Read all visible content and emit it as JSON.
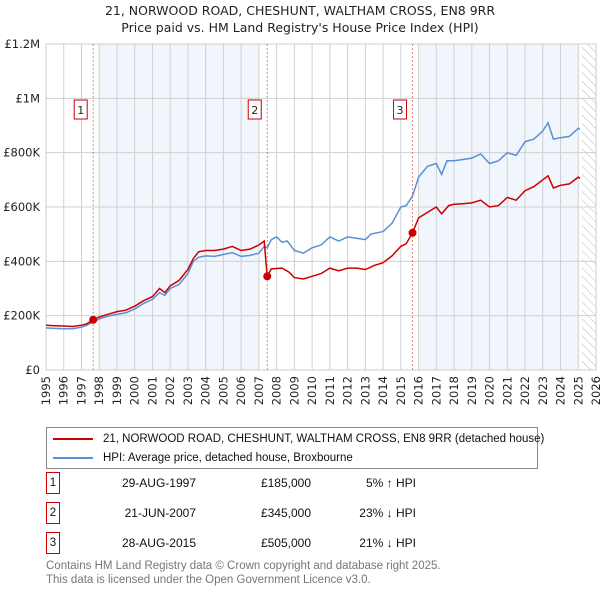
{
  "chart_data": {
    "type": "line",
    "title": "21, NORWOOD ROAD, CHESHUNT, WALTHAM CROSS, EN8 9RR",
    "subtitle": "Price paid vs. HM Land Registry's House Price Index (HPI)",
    "xlim": [
      1995,
      2026
    ],
    "ylim": [
      0,
      1200000
    ],
    "x_ticks": [
      "1995",
      "1996",
      "1997",
      "1998",
      "1999",
      "2000",
      "2001",
      "2002",
      "2003",
      "2004",
      "2005",
      "2006",
      "2007",
      "2008",
      "2009",
      "2010",
      "2011",
      "2012",
      "2013",
      "2014",
      "2015",
      "2016",
      "2017",
      "2018",
      "2019",
      "2020",
      "2021",
      "2022",
      "2023",
      "2024",
      "2025",
      "2026"
    ],
    "y_ticks": [
      {
        "v": 0,
        "label": "£0"
      },
      {
        "v": 200000,
        "label": "£200K"
      },
      {
        "v": 400000,
        "label": "£400K"
      },
      {
        "v": 600000,
        "label": "£600K"
      },
      {
        "v": 800000,
        "label": "£800K"
      },
      {
        "v": 1000000,
        "label": "£1M"
      },
      {
        "v": 1200000,
        "label": "£1.2M"
      }
    ],
    "grid": true,
    "shaded_ranges": [
      [
        1998,
        2007
      ],
      [
        2016,
        2025
      ]
    ],
    "forecast_hatch_from": 2025.2,
    "series": [
      {
        "name": "21, NORWOOD ROAD, CHESHUNT, WALTHAM CROSS, EN8 9RR (detached house)",
        "color": "#cc0000",
        "x": [
          1995,
          1995.5,
          1996,
          1996.5,
          1997,
          1997.3,
          1997.66,
          1998,
          1998.5,
          1999,
          1999.5,
          2000,
          2000.5,
          2001,
          2001.4,
          2001.7,
          2002,
          2002.5,
          2003,
          2003.3,
          2003.6,
          2004,
          2004.5,
          2005,
          2005.5,
          2006,
          2006.5,
          2007,
          2007.3,
          2007.47,
          2007.7,
          2008.3,
          2008.7,
          2009,
          2009.5,
          2010,
          2010.5,
          2011,
          2011.5,
          2012,
          2012.5,
          2013,
          2013.5,
          2014,
          2014.5,
          2015,
          2015.3,
          2015.66,
          2016,
          2016.5,
          2017,
          2017.3,
          2017.7,
          2018,
          2018.5,
          2019,
          2019.5,
          2020,
          2020.5,
          2021,
          2021.5,
          2022,
          2022.5,
          2023,
          2023.3,
          2023.6,
          2024,
          2024.5,
          2025,
          2025.1
        ],
        "y": [
          165000,
          163000,
          162000,
          160000,
          165000,
          170000,
          185000,
          195000,
          205000,
          215000,
          220000,
          235000,
          255000,
          270000,
          300000,
          285000,
          310000,
          330000,
          370000,
          410000,
          435000,
          440000,
          440000,
          445000,
          455000,
          440000,
          445000,
          460000,
          475000,
          345000,
          372000,
          375000,
          360000,
          340000,
          335000,
          345000,
          355000,
          375000,
          365000,
          375000,
          375000,
          370000,
          385000,
          395000,
          420000,
          455000,
          465000,
          505000,
          560000,
          580000,
          600000,
          575000,
          605000,
          610000,
          612000,
          615000,
          625000,
          600000,
          605000,
          635000,
          625000,
          660000,
          675000,
          700000,
          715000,
          670000,
          680000,
          685000,
          710000,
          705000
        ]
      },
      {
        "name": "HPI: Average price, detached house, Broxbourne",
        "color": "#5b8fd6",
        "x": [
          1995,
          1995.5,
          1996,
          1996.5,
          1997,
          1997.3,
          1997.66,
          1998,
          1998.5,
          1999,
          1999.5,
          2000,
          2000.5,
          2001,
          2001.4,
          2001.7,
          2002,
          2002.5,
          2003,
          2003.3,
          2003.6,
          2004,
          2004.5,
          2005,
          2005.5,
          2006,
          2006.5,
          2007,
          2007.3,
          2007.47,
          2007.7,
          2008,
          2008.3,
          2008.6,
          2009,
          2009.5,
          2010,
          2010.5,
          2011,
          2011.5,
          2012,
          2012.5,
          2013,
          2013.3,
          2014,
          2014.5,
          2015,
          2015.3,
          2015.66,
          2016,
          2016.5,
          2017,
          2017.3,
          2017.6,
          2018,
          2018.5,
          2019,
          2019.5,
          2020,
          2020.5,
          2021,
          2021.5,
          2022,
          2022.5,
          2023,
          2023.3,
          2023.6,
          2024,
          2024.5,
          2025,
          2025.1
        ],
        "y": [
          155000,
          153000,
          152000,
          152000,
          158000,
          165000,
          176000,
          188000,
          198000,
          205000,
          210000,
          225000,
          245000,
          260000,
          285000,
          275000,
          300000,
          315000,
          355000,
          400000,
          415000,
          420000,
          418000,
          425000,
          432000,
          418000,
          422000,
          430000,
          455000,
          450000,
          480000,
          490000,
          470000,
          475000,
          440000,
          430000,
          450000,
          460000,
          490000,
          475000,
          490000,
          485000,
          480000,
          500000,
          510000,
          540000,
          600000,
          605000,
          640000,
          710000,
          750000,
          760000,
          720000,
          770000,
          770000,
          775000,
          780000,
          795000,
          760000,
          770000,
          800000,
          790000,
          840000,
          850000,
          880000,
          910000,
          850000,
          855000,
          860000,
          890000,
          885000
        ]
      }
    ],
    "sales": [
      {
        "n": "1",
        "x": 1997.66,
        "y": 185000,
        "date": "29-AUG-1997",
        "price": "£185,000",
        "hpi": "5% ↑ HPI"
      },
      {
        "n": "2",
        "x": 2007.47,
        "y": 345000,
        "date": "21-JUN-2007",
        "price": "£345,000",
        "hpi": "23% ↓ HPI"
      },
      {
        "n": "3",
        "x": 2015.66,
        "y": 505000,
        "date": "28-AUG-2015",
        "price": "£505,000",
        "hpi": "21% ↓ HPI"
      }
    ]
  },
  "legend": {
    "property": "21, NORWOOD ROAD, CHESHUNT, WALTHAM CROSS, EN8 9RR (detached house)",
    "hpi": "HPI: Average price, detached house, Broxbourne"
  },
  "footer": {
    "line1": "Contains HM Land Registry data © Crown copyright and database right 2025.",
    "line2": "This data is licensed under the Open Government Licence v3.0."
  }
}
